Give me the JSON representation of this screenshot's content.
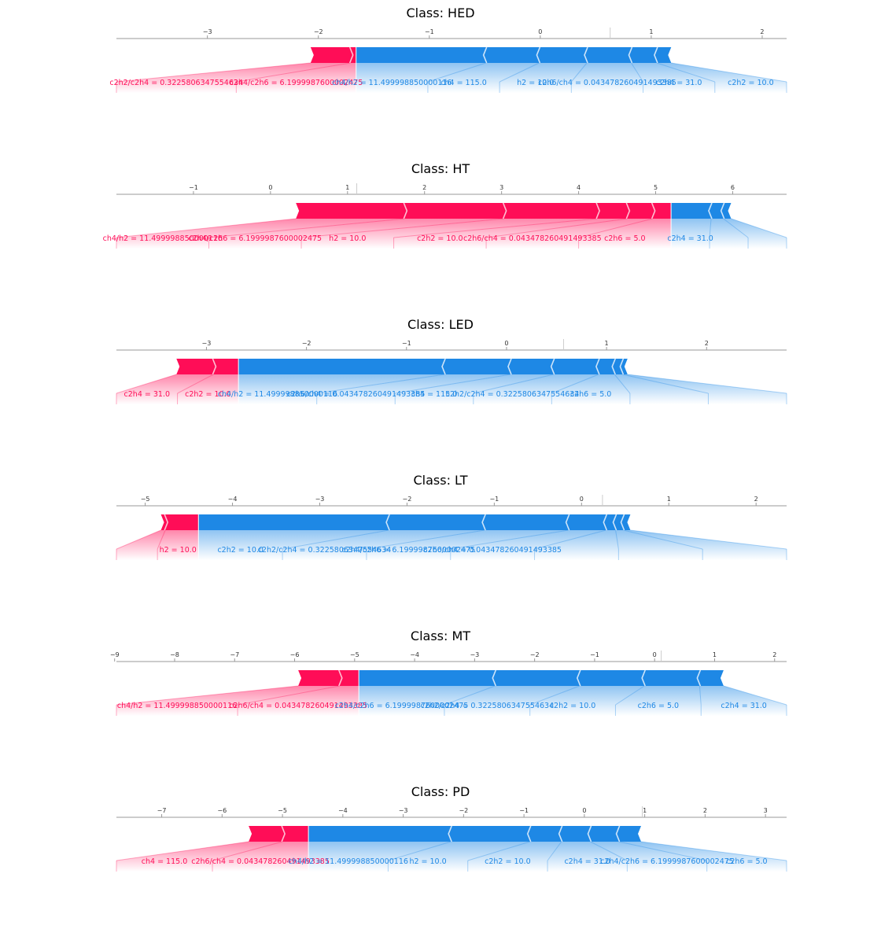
{
  "colors": {
    "positive": "#ff0d57",
    "negative": "#1e88e5",
    "axis": "#999999"
  },
  "chart_data": [
    {
      "type": "force",
      "title": "Class: HED",
      "xlim": [
        -3.82,
        2.22
      ],
      "ticks": [
        -3,
        -2,
        -1,
        0,
        1,
        2
      ],
      "tick_labels": [
        "−3",
        "−2",
        "−1",
        "0",
        "1",
        "2"
      ],
      "base_value": 0.63,
      "output_value": -1.66,
      "positive": [
        {
          "label": "c2h4/c2h6 = 6.1999987600002475",
          "value": 0.05
        },
        {
          "label": "c2h2/c2h4 = 0.3225806347554634",
          "value": 0.36
        }
      ],
      "negative": [
        {
          "label": "ch4/h2 = 11.499998850000116",
          "value": 1.17
        },
        {
          "label": "ch4 = 115.0",
          "value": 0.48
        },
        {
          "label": "h2 = 10.0",
          "value": 0.43
        },
        {
          "label": "c2h6/ch4 = 0.043478260491493385",
          "value": 0.4
        },
        {
          "label": "c2h4 = 31.0",
          "value": 0.23
        },
        {
          "label": "c2h2 = 10.0",
          "value": 0.13
        }
      ]
    },
    {
      "type": "force",
      "title": "Class: HT",
      "xlim": [
        -2.0,
        6.7
      ],
      "ticks": [
        -1,
        0,
        1,
        2,
        3,
        4,
        5,
        6
      ],
      "tick_labels": [
        "−1",
        "0",
        "1",
        "2",
        "3",
        "4",
        "5",
        "6"
      ],
      "base_value": 1.12,
      "output_value": 5.2,
      "positive": [
        {
          "label": "c2h6 = 5.0",
          "value": 0.24
        },
        {
          "label": "c2h6/ch4 = 0.043478260491493385",
          "value": 0.33
        },
        {
          "label": "c2h2 = 10.0",
          "value": 0.39
        },
        {
          "label": "h2 = 10.0",
          "value": 1.21
        },
        {
          "label": "c2h4/c2h6 = 6.1999987600002475",
          "value": 1.29
        },
        {
          "label": "ch4/h2 = 11.499998850000116",
          "value": 1.41
        }
      ],
      "negative": [
        {
          "label": "c2h4 = 31.0",
          "value": 0.52
        },
        {
          "label": "",
          "value": 0.16
        },
        {
          "label": "",
          "value": 0.1
        }
      ]
    },
    {
      "type": "force",
      "title": "Class: LED",
      "xlim": [
        -3.9,
        2.8
      ],
      "ticks": [
        -3,
        -2,
        -1,
        0,
        1,
        2
      ],
      "tick_labels": [
        "−3",
        "−2",
        "−1",
        "0",
        "1",
        "2"
      ],
      "base_value": 0.57,
      "output_value": -2.68,
      "positive": [
        {
          "label": "c2h2 = 10.0",
          "value": 0.25
        },
        {
          "label": "c2h4 = 31.0",
          "value": 0.37
        }
      ],
      "negative": [
        {
          "label": "ch4/h2 = 11.499998850000116",
          "value": 2.06
        },
        {
          "label": "c2h6/ch4 = 0.043478260491493385",
          "value": 0.66
        },
        {
          "label": "ch4 = 115.0",
          "value": 0.43
        },
        {
          "label": "c2h2/c2h4 = 0.3225806347554634",
          "value": 0.45
        },
        {
          "label": "c2h6 = 5.0",
          "value": 0.16
        },
        {
          "label": "",
          "value": 0.08
        },
        {
          "label": "",
          "value": 0.05
        }
      ]
    },
    {
      "type": "force",
      "title": "Class: LT",
      "xlim": [
        -5.33,
        2.35
      ],
      "ticks": [
        -5,
        -4,
        -3,
        -2,
        -1,
        0,
        1,
        2
      ],
      "tick_labels": [
        "−5",
        "−4",
        "−3",
        "−2",
        "−1",
        "0",
        "1",
        "2"
      ],
      "base_value": 0.24,
      "output_value": -4.39,
      "positive": [
        {
          "label": "h2 = 10.0",
          "value": 0.38
        },
        {
          "label": "",
          "value": 0.05
        }
      ],
      "negative": [
        {
          "label": "c2h2 = 10.0",
          "value": 2.18
        },
        {
          "label": "c2h2/c2h4 = 0.3225806347554634",
          "value": 1.1
        },
        {
          "label": "c2h4/c2h6 = 6.1999987600002475",
          "value": 0.96
        },
        {
          "label": "c2h6/ch4 = 0.043478260491493385",
          "value": 0.43
        },
        {
          "label": "",
          "value": 0.11
        },
        {
          "label": "",
          "value": 0.09
        },
        {
          "label": "",
          "value": 0.08
        }
      ]
    },
    {
      "type": "force",
      "title": "Class: MT",
      "xlim": [
        -8.97,
        2.2
      ],
      "ticks": [
        -9,
        -8,
        -7,
        -6,
        -5,
        -4,
        -3,
        -2,
        -1,
        0,
        1,
        2
      ],
      "tick_labels": [
        "−9",
        "−8",
        "−7",
        "−6",
        "−5",
        "−4",
        "−3",
        "−2",
        "−1",
        "0",
        "1",
        "2"
      ],
      "base_value": 0.11,
      "output_value": -4.93,
      "positive": [
        {
          "label": "c2h6/ch4 = 0.043478260491493385",
          "value": 0.32
        },
        {
          "label": "ch4/h2 = 11.499998850000116",
          "value": 0.69
        }
      ],
      "negative": [
        {
          "label": "c2h4/c2h6 = 6.1999987600002475",
          "value": 2.27
        },
        {
          "label": "c2h2/c2h4 = 0.3225806347554634",
          "value": 1.41
        },
        {
          "label": "c2h2 = 10.0",
          "value": 1.08
        },
        {
          "label": "c2h6 = 5.0",
          "value": 0.92
        },
        {
          "label": "c2h4 = 31.0",
          "value": 0.4
        }
      ]
    },
    {
      "type": "force",
      "title": "Class: PD",
      "xlim": [
        -7.75,
        3.35
      ],
      "ticks": [
        -7,
        -6,
        -5,
        -4,
        -3,
        -2,
        -1,
        0,
        1,
        2,
        3
      ],
      "tick_labels": [
        "−7",
        "−6",
        "−5",
        "−4",
        "−3",
        "−2",
        "−1",
        "0",
        "1",
        "2",
        "3"
      ],
      "base_value": 0.96,
      "output_value": -4.57,
      "positive": [
        {
          "label": "c2h6/ch4 = 0.043478260491493385",
          "value": 0.43
        },
        {
          "label": "ch4 = 115.0",
          "value": 0.56
        }
      ],
      "negative": [
        {
          "label": "ch4/h2 = 11.499998850000116",
          "value": 2.36
        },
        {
          "label": "h2 = 10.0",
          "value": 1.31
        },
        {
          "label": "c2h2 = 10.0",
          "value": 0.52
        },
        {
          "label": "c2h4 = 31.0",
          "value": 0.48
        },
        {
          "label": "c2h4/c2h6 = 6.1999987600002475",
          "value": 0.47
        },
        {
          "label": "c2h6 = 5.0",
          "value": 0.37
        }
      ]
    }
  ]
}
